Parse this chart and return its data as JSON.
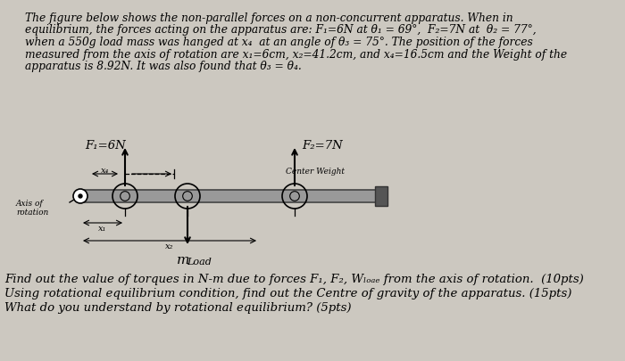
{
  "bg_color": "#ccc8c0",
  "para_line1": "The figure below shows the non-parallel forces on a non-concurrent apparatus. When in",
  "para_line2": "equilibrium, the forces acting on the apparatus are: F₁=6N at θ₁ = 69°,  F₂=7N at  θ₂ = 77°,",
  "para_line3": "when a 550g load mass was hanged at x₄  at an angle of θ₃ = 75°. The position of the forces",
  "para_line4": "measured from the axis of rotation are x₁=6cm, x₂=41.2cm, and x₄=16.5cm and the Weight of the",
  "para_line5": "apparatus is 8.92N. It was also found that θ₃ = θ₄.",
  "F1_label": "F₁=6N",
  "F2_label": "F₂=7N",
  "center_weight_label": "Center Weight",
  "axis_label1": "Axis of",
  "axis_label2": "rotation",
  "x1_label": "x₁",
  "x4_label": "x₄",
  "x2_label": "x₂",
  "mload_m": "m",
  "mload_sub": "Load",
  "q1": "Find out the value of torques in N-m due to forces F₁, F₂, Wₗₒₐₑ from the axis of rotation.  (10pts)",
  "q2": "Using rotational equilibrium condition, find out the Centre of gravity of the apparatus. (15pts)",
  "q3": "What do you understand by rotational equilibrium? (5pts)",
  "beam_color": "#999999",
  "beam_edge": "#444444"
}
